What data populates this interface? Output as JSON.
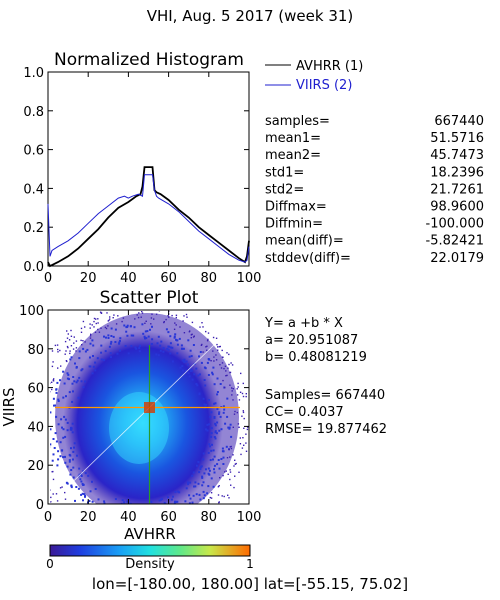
{
  "title": "VHI,  Aug. 5 2017 (week 31)",
  "colors": {
    "avhrr": "#000000",
    "viirs": "#1f1fcf",
    "cross_h": "#ff9900",
    "cross_v": "#2a9a2a",
    "diag": "#ffffff"
  },
  "histogram": {
    "title": "Normalized Histogram",
    "legend": [
      {
        "name": "AVHRR (1)",
        "color": "#000000"
      },
      {
        "name": "VIIRS (2)",
        "color": "#1f1fcf"
      }
    ],
    "stats": [
      {
        "label": "samples=",
        "value": "667440"
      },
      {
        "label": "mean1=",
        "value": "51.5716"
      },
      {
        "label": "mean2=",
        "value": "45.7473"
      },
      {
        "label": "std1=",
        "value": "18.2396"
      },
      {
        "label": "std2=",
        "value": "21.7261"
      },
      {
        "label": "Diffmax=",
        "value": "98.9600"
      },
      {
        "label": "Diffmin=",
        "value": "-100.000"
      },
      {
        "label": "mean(diff)=",
        "value": "-5.82421"
      },
      {
        "label": "stddev(diff)=",
        "value": "22.0179"
      }
    ]
  },
  "scatter": {
    "title": "Scatter Plot",
    "equation": "Y= a +b * X",
    "a": "a= 20.951087",
    "b": "b= 0.48081219",
    "samples": "Samples= 667440",
    "cc": "CC=  0.4037",
    "rmse": "RMSE= 19.877462"
  },
  "colorbar": {
    "min_label": "0",
    "max_label": "1",
    "label": "Density"
  },
  "footer": {
    "lon_label": "lon=",
    "lon_value": "[-180.00, 180.00]",
    "lat_label": "lat=",
    "lat_value": "[-55.15, 75.02]"
  },
  "chart_data": [
    {
      "type": "line",
      "title": "Normalized Histogram",
      "xlim": [
        0,
        100
      ],
      "ylim": [
        0,
        1.0
      ],
      "x_ticks": [
        0,
        20,
        40,
        60,
        80,
        100
      ],
      "y_ticks": [
        "0.0",
        "0.2",
        "0.4",
        "0.6",
        "0.8",
        "1.0"
      ],
      "series": [
        {
          "name": "AVHRR (1)",
          "color": "#000000",
          "x": [
            0,
            1,
            5,
            10,
            15,
            20,
            25,
            30,
            35,
            40,
            44,
            46,
            47,
            48,
            50,
            52,
            53,
            54,
            56,
            60,
            65,
            70,
            75,
            80,
            85,
            90,
            95,
            98,
            99,
            100
          ],
          "y": [
            0.02,
            0.0,
            0.02,
            0.05,
            0.09,
            0.14,
            0.19,
            0.25,
            0.3,
            0.33,
            0.36,
            0.37,
            0.41,
            0.51,
            0.51,
            0.51,
            0.39,
            0.38,
            0.37,
            0.34,
            0.29,
            0.25,
            0.2,
            0.16,
            0.12,
            0.08,
            0.04,
            0.02,
            0.05,
            0.13
          ]
        },
        {
          "name": "VIIRS (2)",
          "color": "#1f1fcf",
          "x": [
            0,
            1,
            2,
            5,
            10,
            15,
            20,
            25,
            30,
            35,
            38,
            40,
            42,
            45,
            47,
            48,
            50,
            52,
            53,
            54,
            55,
            60,
            65,
            70,
            75,
            80,
            85,
            90,
            95,
            98,
            99,
            100
          ],
          "y": [
            0.32,
            0.05,
            0.08,
            0.1,
            0.13,
            0.17,
            0.22,
            0.27,
            0.31,
            0.35,
            0.36,
            0.35,
            0.36,
            0.37,
            0.36,
            0.47,
            0.47,
            0.47,
            0.39,
            0.36,
            0.35,
            0.32,
            0.28,
            0.23,
            0.18,
            0.14,
            0.1,
            0.06,
            0.03,
            0.02,
            0.03,
            0.1
          ]
        }
      ]
    },
    {
      "type": "heatmap",
      "title": "Scatter Plot",
      "xlabel": "AVHRR",
      "ylabel": "VIIRS",
      "xlim": [
        0,
        100
      ],
      "ylim": [
        0,
        100
      ],
      "x_ticks": [
        0,
        20,
        40,
        60,
        80,
        100
      ],
      "y_ticks": [
        0,
        20,
        40,
        60,
        80,
        100
      ],
      "density_center": [
        45,
        40
      ],
      "regression": {
        "a": 20.951087,
        "b": 0.48081219
      },
      "reference_lines": {
        "x": 50,
        "y": 50,
        "diagonal": true
      },
      "colorbar_range": [
        0,
        1
      ]
    }
  ]
}
